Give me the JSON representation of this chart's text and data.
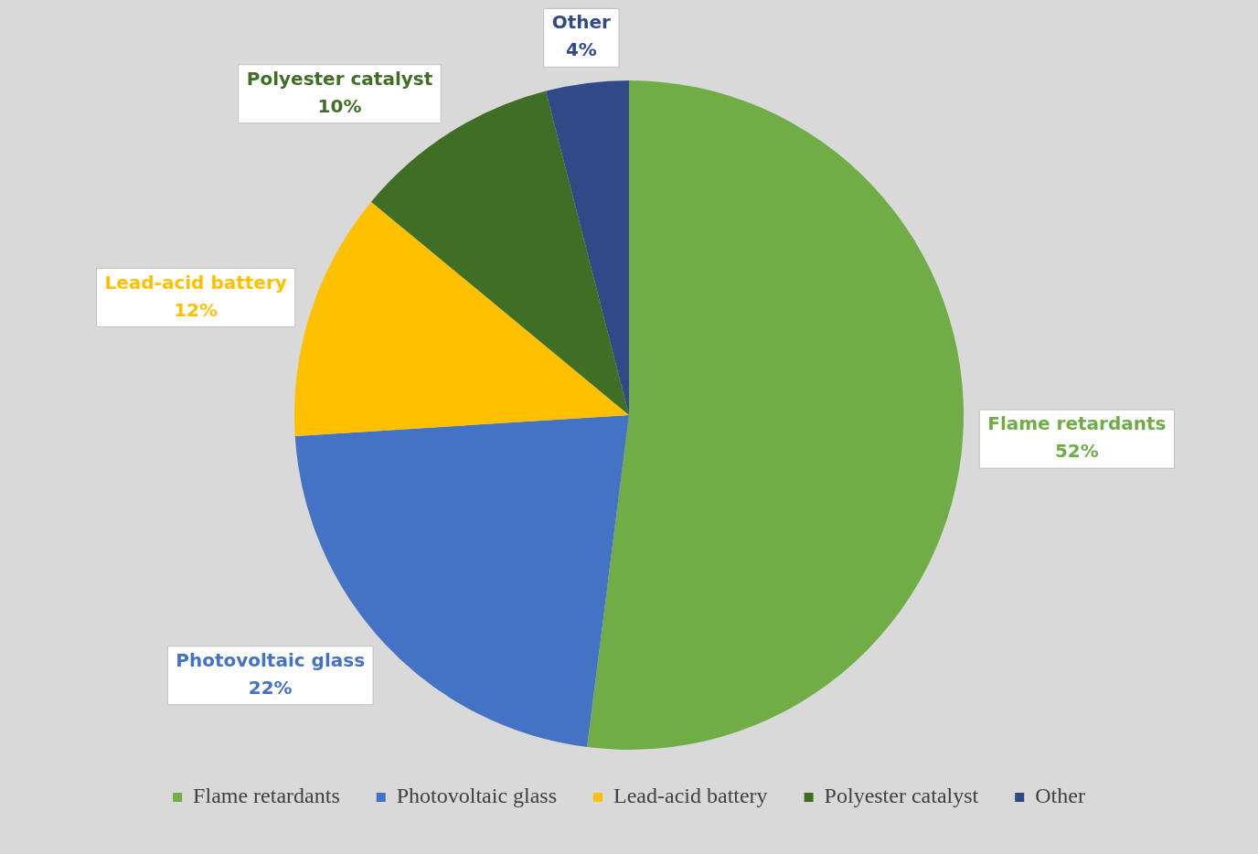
{
  "chart_data": {
    "type": "pie",
    "categories": [
      "Flame retardants",
      "Photovoltaic glass",
      "Lead-acid battery",
      "Polyester catalyst",
      "Other"
    ],
    "values": [
      52,
      22,
      12,
      10,
      4
    ],
    "value_labels": [
      "52%",
      "22%",
      "12%",
      "10%",
      "4%"
    ],
    "colors": [
      "#70ad47",
      "#4472c4",
      "#ffc000",
      "#3f6f24",
      "#2f4a86"
    ],
    "legend": "bottom"
  }
}
